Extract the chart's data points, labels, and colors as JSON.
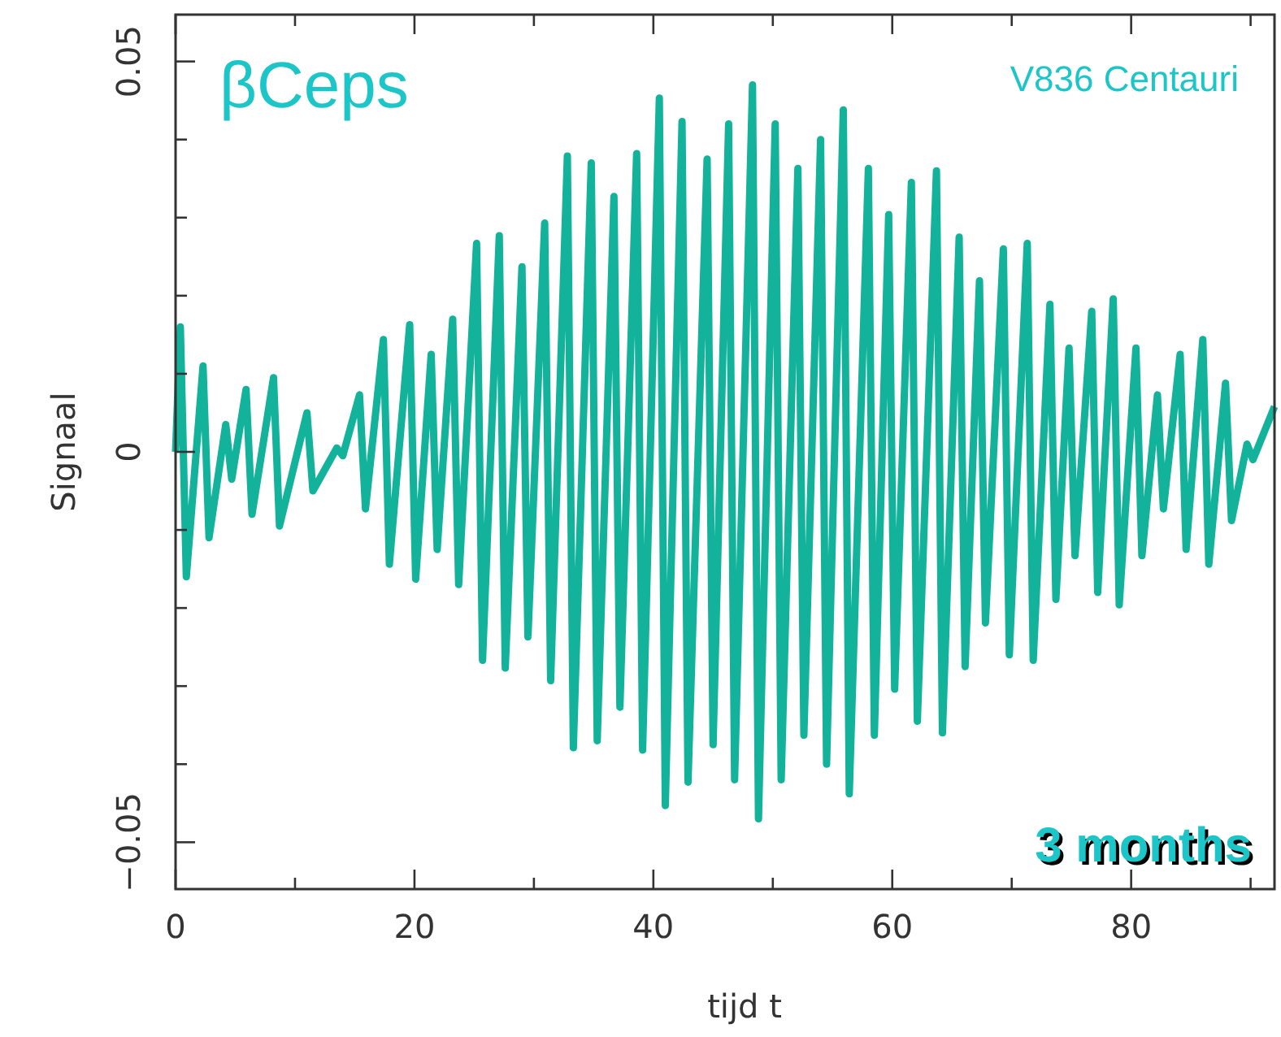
{
  "chart_data": {
    "type": "line",
    "xlabel": "tijd t",
    "ylabel": "Signaal",
    "annotations": [
      "βCeps",
      "V836 Centauri",
      "3 months"
    ],
    "xlim": [
      0,
      92
    ],
    "ylim": [
      -0.056,
      0.056
    ],
    "xticks": [
      0,
      {
        "value": 10,
        "label": null
      },
      20,
      {
        "value": 30,
        "label": null
      },
      40,
      {
        "value": 50,
        "label": null
      },
      60,
      {
        "value": 70,
        "label": null
      },
      80,
      {
        "value": 90,
        "label": null
      }
    ],
    "yticks": [
      {
        "value": -0.05,
        "label": "−0.05"
      },
      {
        "value": -0.04,
        "label": null
      },
      {
        "value": -0.03,
        "label": null
      },
      {
        "value": -0.02,
        "label": null
      },
      {
        "value": -0.01,
        "label": null
      },
      0,
      {
        "value": 0.01,
        "label": null
      },
      {
        "value": 0.02,
        "label": null
      },
      {
        "value": 0.03,
        "label": null
      },
      {
        "value": 0.04,
        "label": null
      },
      0.05
    ],
    "marker": "none",
    "line_style": "solid",
    "series": [
      {
        "color": "#12b39a",
        "x": [
          0,
          0.4,
          0.9,
          2.3,
          2.8,
          4.2,
          4.7,
          5.9,
          6.4,
          8.2,
          8.7,
          11,
          11.5,
          13.5,
          14,
          15.4,
          15.9,
          17.4,
          17.9,
          19.6,
          20.1,
          21.4,
          21.9,
          23.2,
          23.7,
          25.2,
          25.7,
          27.1,
          27.6,
          29,
          29.5,
          30.9,
          31.4,
          32.8,
          33.3,
          34.8,
          35.3,
          36.7,
          37.2,
          38.6,
          39.1,
          40.5,
          41,
          42.4,
          42.9,
          44.5,
          45,
          46.3,
          46.8,
          48.3,
          48.8,
          50.2,
          50.7,
          52.1,
          52.6,
          54,
          54.5,
          55.9,
          56.4,
          58,
          58.5,
          59.7,
          60.2,
          61.6,
          62.1,
          63.7,
          64.2,
          65.6,
          66.1,
          67.3,
          67.8,
          69.3,
          69.8,
          71.3,
          71.8,
          73.2,
          73.7,
          74.8,
          75.3,
          76.7,
          77.2,
          78.5,
          79,
          80.4,
          80.9,
          82.2,
          82.7,
          84.1,
          84.6,
          86,
          86.5,
          87.9,
          88.4,
          89.7,
          90.2,
          92
        ],
        "values": [
          0,
          0.016,
          -0.016,
          0.011,
          -0.011,
          0.0035,
          -0.0035,
          0.008,
          -0.008,
          0.0095,
          -0.0095,
          0.005,
          -0.005,
          0.0005,
          -0.0005,
          0.0073,
          -0.0073,
          0.0144,
          -0.0144,
          0.0163,
          -0.0163,
          0.0125,
          -0.0125,
          0.017,
          -0.017,
          0.0267,
          -0.0267,
          0.0277,
          -0.0277,
          0.0237,
          -0.0237,
          0.0293,
          -0.0293,
          0.0379,
          -0.0379,
          0.037,
          -0.037,
          0.0327,
          -0.0327,
          0.0382,
          -0.0382,
          0.0453,
          -0.0453,
          0.0423,
          -0.0423,
          0.0375,
          -0.0375,
          0.042,
          -0.042,
          0.047,
          -0.047,
          0.042,
          -0.042,
          0.0363,
          -0.0363,
          0.04,
          -0.04,
          0.0438,
          -0.0438,
          0.0363,
          -0.0363,
          0.0304,
          -0.0304,
          0.0345,
          -0.0345,
          0.036,
          -0.036,
          0.0275,
          -0.0275,
          0.0219,
          -0.0219,
          0.026,
          -0.026,
          0.0267,
          -0.0267,
          0.0189,
          -0.0189,
          0.0133,
          -0.0133,
          0.018,
          -0.018,
          0.0196,
          -0.0196,
          0.0133,
          -0.0133,
          0.0073,
          -0.0073,
          0.0125,
          -0.0125,
          0.0144,
          -0.0144,
          0.0088,
          -0.0088,
          0.001,
          -0.001,
          0.0058
        ]
      }
    ]
  }
}
